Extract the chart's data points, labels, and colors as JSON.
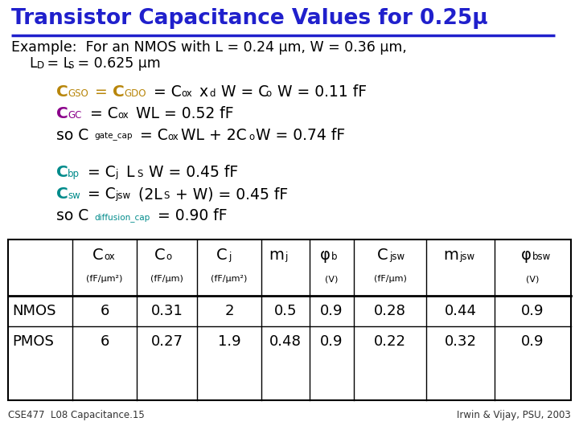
{
  "title": "Transistor Capacitance Values for 0.25μ",
  "title_color": "#2020CC",
  "bg_color": "#FFFFFF",
  "gold_color": "#B8860B",
  "purple_color": "#8B008B",
  "teal_color": "#008B8B",
  "black_color": "#000000",
  "footer_left": "CSE477  L08 Capacitance.15",
  "footer_right": "Irwin & Vijay, PSU, 2003",
  "nmos_values": [
    "6",
    "0.31",
    "2",
    "0.5",
    "0.9",
    "0.28",
    "0.44",
    "0.9"
  ],
  "pmos_values": [
    "6",
    "0.27",
    "1.9",
    "0.48",
    "0.9",
    "0.22",
    "0.32",
    "0.9"
  ],
  "subheaders": [
    "(fF/μm²)",
    "(fF/μm)",
    "(fF/μm²)",
    "",
    "(V)",
    "(fF/μm)",
    "",
    "(V)"
  ]
}
